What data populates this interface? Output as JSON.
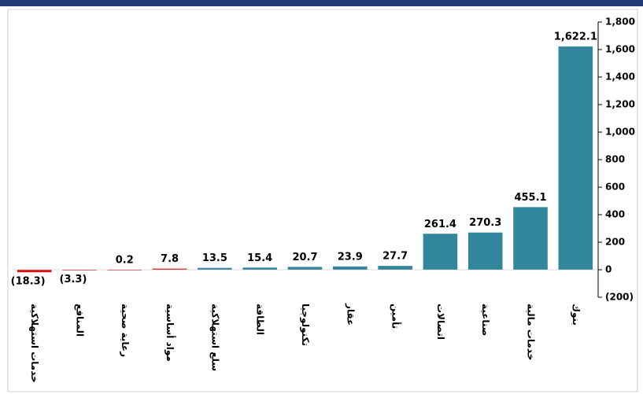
{
  "chart_data": {
    "type": "bar",
    "categories": [
      "خدمات استهلاكية",
      "المنافع",
      "رعاية صحية",
      "مواد أساسية",
      "سلع استهلاكية",
      "الطاقة",
      "تكنولوجيا",
      "عقار",
      "تأمين",
      "اتصالات",
      "صناعية",
      "خدمات مالية",
      "بنوك"
    ],
    "values": [
      -18.3,
      -3.3,
      0.2,
      7.8,
      13.5,
      15.4,
      20.7,
      23.9,
      27.7,
      261.4,
      270.3,
      455.1,
      1622.1
    ],
    "value_labels": [
      "(18.3)",
      "(3.3)",
      "0.2",
      "7.8",
      "13.5",
      "15.4",
      "20.7",
      "23.9",
      "27.7",
      "261.4",
      "270.3",
      "455.1",
      "1,622.1"
    ],
    "colors": [
      "#e01010",
      "#e01010",
      "#e01010",
      "#e01010",
      "#31869b",
      "#31869b",
      "#31869b",
      "#31869b",
      "#31869b",
      "#31869b",
      "#31869b",
      "#31869b",
      "#31869b"
    ],
    "negative_label_color": "#e01010",
    "ylim": [
      -200,
      1800
    ],
    "yticks": [
      {
        "value": -200,
        "label": "(200)"
      },
      0,
      200,
      400,
      600,
      800,
      {
        "value": 1000,
        "label": "1,000"
      },
      {
        "value": 1200,
        "label": "1,200"
      },
      {
        "value": 1400,
        "label": "1,400"
      },
      {
        "value": 1600,
        "label": "1,600"
      },
      {
        "value": 1800,
        "label": "1,800"
      }
    ],
    "y_axis_side": "right"
  }
}
